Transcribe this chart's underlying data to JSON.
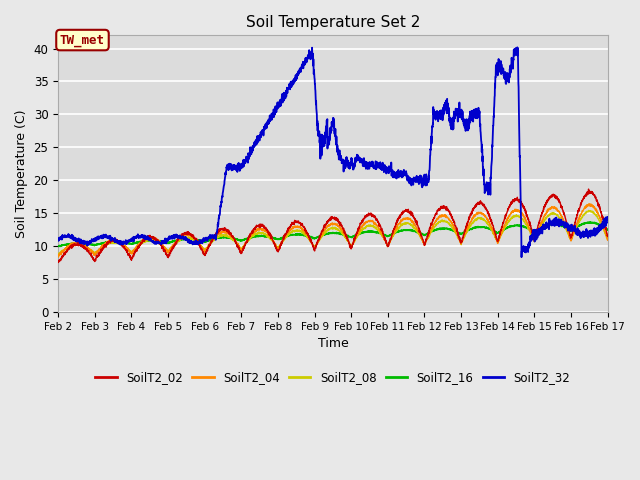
{
  "title": "Soil Temperature Set 2",
  "xlabel": "Time",
  "ylabel": "Soil Temperature (C)",
  "ylim": [
    0,
    42
  ],
  "yticks": [
    0,
    5,
    10,
    15,
    20,
    25,
    30,
    35,
    40
  ],
  "fig_bg_color": "#e8e8e8",
  "plot_bg_color": "#dcdcdc",
  "grid_color": "#ffffff",
  "annotation_text": "TW_met",
  "annotation_bg": "#ffffcc",
  "annotation_border": "#990000",
  "series_colors": {
    "SoilT2_02": "#cc0000",
    "SoilT2_04": "#ff8800",
    "SoilT2_08": "#cccc00",
    "SoilT2_16": "#00bb00",
    "SoilT2_32": "#0000cc"
  },
  "x_start_day": 2,
  "x_end_day": 17,
  "x_ticks": [
    2,
    3,
    4,
    5,
    6,
    7,
    8,
    9,
    10,
    11,
    12,
    13,
    14,
    15,
    16,
    17
  ],
  "x_tick_labels": [
    "Feb 2",
    "Feb 3",
    "Feb 4",
    "Feb 5",
    "Feb 6",
    "Feb 7",
    "Feb 8",
    "Feb 9",
    "Feb 10",
    "Feb 11",
    "Feb 12",
    "Feb 13",
    "Feb 14",
    "Feb 15",
    "Feb 16",
    "Feb 17"
  ]
}
